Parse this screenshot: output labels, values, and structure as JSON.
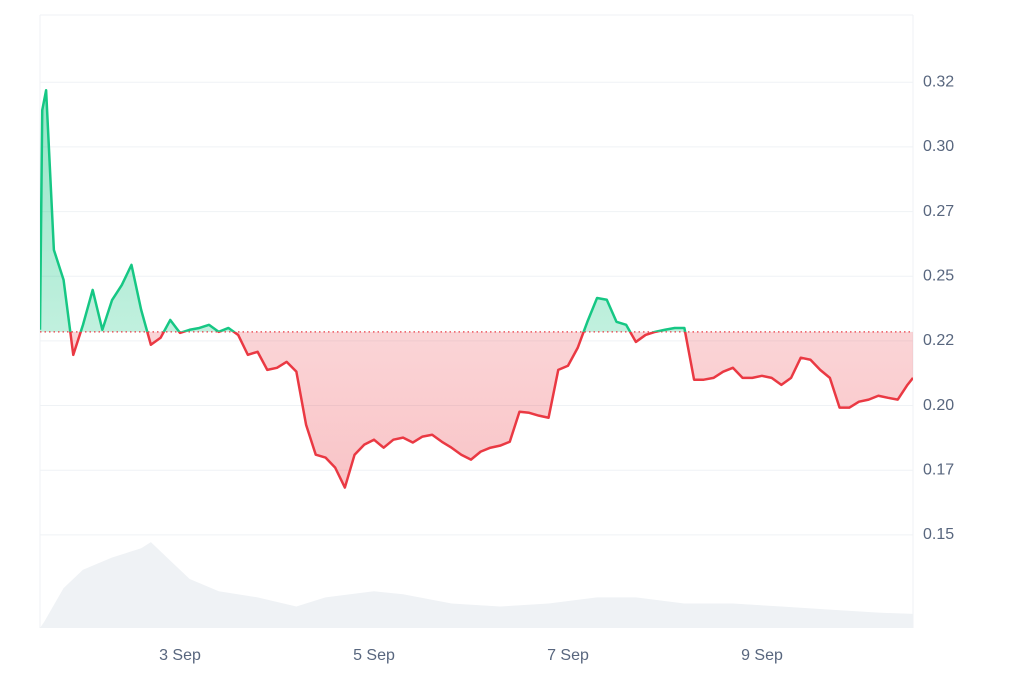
{
  "chart_data": {
    "type": "baseline-line",
    "baseline": 0.2285,
    "color_above": "#16c784",
    "color_below": "#ea3943",
    "grid": true,
    "ylim": [
      0.114,
      0.351
    ],
    "yticks": [
      0.15,
      {
        "value": 0.175,
        "label": "0.17"
      },
      {
        "value": 0.2,
        "label": "0.20"
      },
      {
        "value": 0.225,
        "label": "0.22"
      },
      0.25,
      {
        "value": 0.275,
        "label": "0.27"
      },
      {
        "value": 0.3,
        "label": "0.30"
      },
      {
        "value": 0.325,
        "label": "0.32"
      }
    ],
    "xlim": [
      1.557,
      10.557
    ],
    "xticks": [
      {
        "value": 3,
        "label": "3 Sep"
      },
      {
        "value": 5,
        "label": "5 Sep"
      },
      {
        "value": 7,
        "label": "7 Sep"
      },
      {
        "value": 9,
        "label": "9 Sep"
      }
    ],
    "y2lim": [
      0,
      100
    ],
    "series": [
      {
        "x": [
          1.557,
          1.58,
          1.62,
          1.7,
          1.8,
          1.9,
          2.0,
          2.1,
          2.2,
          2.3,
          2.4,
          2.5,
          2.6,
          2.7,
          2.8,
          2.9,
          3.0,
          3.1,
          3.2,
          3.3,
          3.4,
          3.5,
          3.6,
          3.7,
          3.8,
          3.9,
          4.0,
          4.1,
          4.2,
          4.3,
          4.4,
          4.5,
          4.6,
          4.7,
          4.8,
          4.9,
          5.0,
          5.1,
          5.2,
          5.3,
          5.4,
          5.5,
          5.6,
          5.7,
          5.8,
          5.9,
          6.0,
          6.1,
          6.2,
          6.3,
          6.4,
          6.5,
          6.6,
          6.7,
          6.8,
          6.9,
          7.0,
          7.1,
          7.2,
          7.3,
          7.4,
          7.5,
          7.6,
          7.7,
          7.8,
          7.9,
          8.0,
          8.1,
          8.2,
          8.3,
          8.4,
          8.5,
          8.6,
          8.7,
          8.8,
          8.9,
          9.0,
          9.1,
          9.2,
          9.3,
          9.4,
          9.5,
          9.6,
          9.7,
          9.8,
          9.9,
          10.0,
          10.1,
          10.2,
          10.3,
          10.4,
          10.5,
          10.557
        ],
        "values": [
          0.2293,
          0.3142,
          0.3219,
          0.2602,
          0.2486,
          0.2196,
          0.2312,
          0.2447,
          0.2293,
          0.2408,
          0.2466,
          0.2544,
          0.237,
          0.2235,
          0.2262,
          0.2331,
          0.2281,
          0.2293,
          0.23,
          0.2312,
          0.2285,
          0.23,
          0.2273,
          0.2196,
          0.2208,
          0.2138,
          0.2146,
          0.2169,
          0.2131,
          0.1926,
          0.181,
          0.1799,
          0.176,
          0.1683,
          0.181,
          0.1849,
          0.1868,
          0.1837,
          0.1868,
          0.1876,
          0.1857,
          0.188,
          0.1887,
          0.186,
          0.1837,
          0.181,
          0.1791,
          0.1822,
          0.1837,
          0.1845,
          0.186,
          0.1976,
          0.1972,
          0.1961,
          0.1953,
          0.2138,
          0.2154,
          0.2223,
          0.2324,
          0.2416,
          0.2409,
          0.2324,
          0.2312,
          0.2246,
          0.2273,
          0.2285,
          0.2293,
          0.23,
          0.23,
          0.21,
          0.21,
          0.2107,
          0.2131,
          0.2146,
          0.2107,
          0.2107,
          0.2115,
          0.2107,
          0.208,
          0.2107,
          0.2185,
          0.2177,
          0.2138,
          0.2107,
          0.1992,
          0.1992,
          0.2015,
          0.2023,
          0.2038,
          0.203,
          0.2023,
          0.208,
          0.2107
        ]
      },
      {
        "axis": "y2",
        "color": "#eff2f5",
        "x": [
          1.557,
          1.6,
          1.8,
          2.0,
          2.3,
          2.6,
          2.7,
          2.9,
          3.1,
          3.4,
          3.8,
          4.2,
          4.5,
          5.0,
          5.3,
          5.8,
          6.3,
          6.8,
          7.3,
          7.7,
          8.2,
          8.7,
          9.2,
          9.7,
          10.2,
          10.557
        ],
        "values": [
          0,
          1,
          6.5,
          9.5,
          11.5,
          13,
          14,
          11,
          8,
          6,
          5,
          3.5,
          5,
          6,
          5.5,
          4,
          3.5,
          4,
          5,
          5,
          4,
          4,
          3.5,
          3,
          2.5,
          2.3
        ]
      }
    ]
  }
}
